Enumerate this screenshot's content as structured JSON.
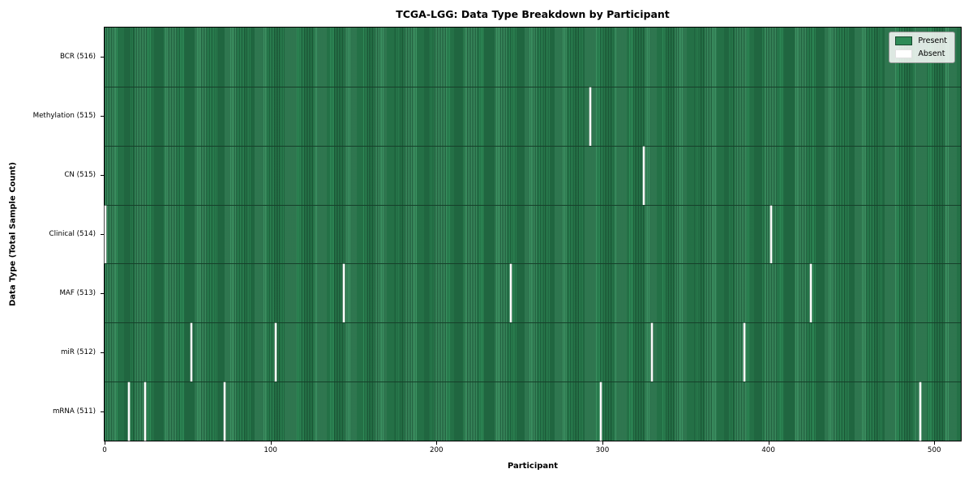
{
  "figure": {
    "title": "TCGA-LGG: Data Type Breakdown by Participant",
    "xlabel": "Participant",
    "ylabel": "Data Type (Total Sample Count)"
  },
  "legend": {
    "items": [
      {
        "label": "Present",
        "color": "#2e8b57"
      },
      {
        "label": "Absent",
        "color": "#ffffff"
      }
    ],
    "position": "upper right"
  },
  "chart_data": {
    "type": "heatmap",
    "title": "TCGA-LGG: Data Type Breakdown by Participant",
    "xlabel": "Participant",
    "ylabel": "Data Type (Total Sample Count)",
    "x_ticks": [
      0,
      100,
      200,
      300,
      400,
      500
    ],
    "x_range": [
      0,
      516
    ],
    "total_participants": 516,
    "grid": false,
    "legend_entries": [
      "Present",
      "Absent"
    ],
    "legend_position": "upper right",
    "colors": {
      "present": "#2e8b57",
      "absent": "#ffffff"
    },
    "rows": [
      {
        "label": "BCR (516)",
        "data_type": "BCR",
        "present_count": 516,
        "absent_count": 0,
        "absent_participants": []
      },
      {
        "label": "Methylation (515)",
        "data_type": "Methylation",
        "present_count": 515,
        "absent_count": 1,
        "absent_participants": [
          293
        ]
      },
      {
        "label": "CN (515)",
        "data_type": "CN",
        "present_count": 515,
        "absent_count": 1,
        "absent_participants": [
          325
        ]
      },
      {
        "label": "Clinical (514)",
        "data_type": "Clinical",
        "present_count": 514,
        "absent_count": 2,
        "absent_participants": [
          0,
          402
        ]
      },
      {
        "label": "MAF (513)",
        "data_type": "MAF",
        "present_count": 513,
        "absent_count": 3,
        "absent_participants": [
          144,
          245,
          426
        ]
      },
      {
        "label": "miR (512)",
        "data_type": "miR",
        "present_count": 512,
        "absent_count": 4,
        "absent_participants": [
          52,
          103,
          330,
          386
        ]
      },
      {
        "label": "mRNA (511)",
        "data_type": "mRNA",
        "present_count": 511,
        "absent_count": 5,
        "absent_participants": [
          14,
          24,
          72,
          299,
          492
        ]
      }
    ]
  }
}
